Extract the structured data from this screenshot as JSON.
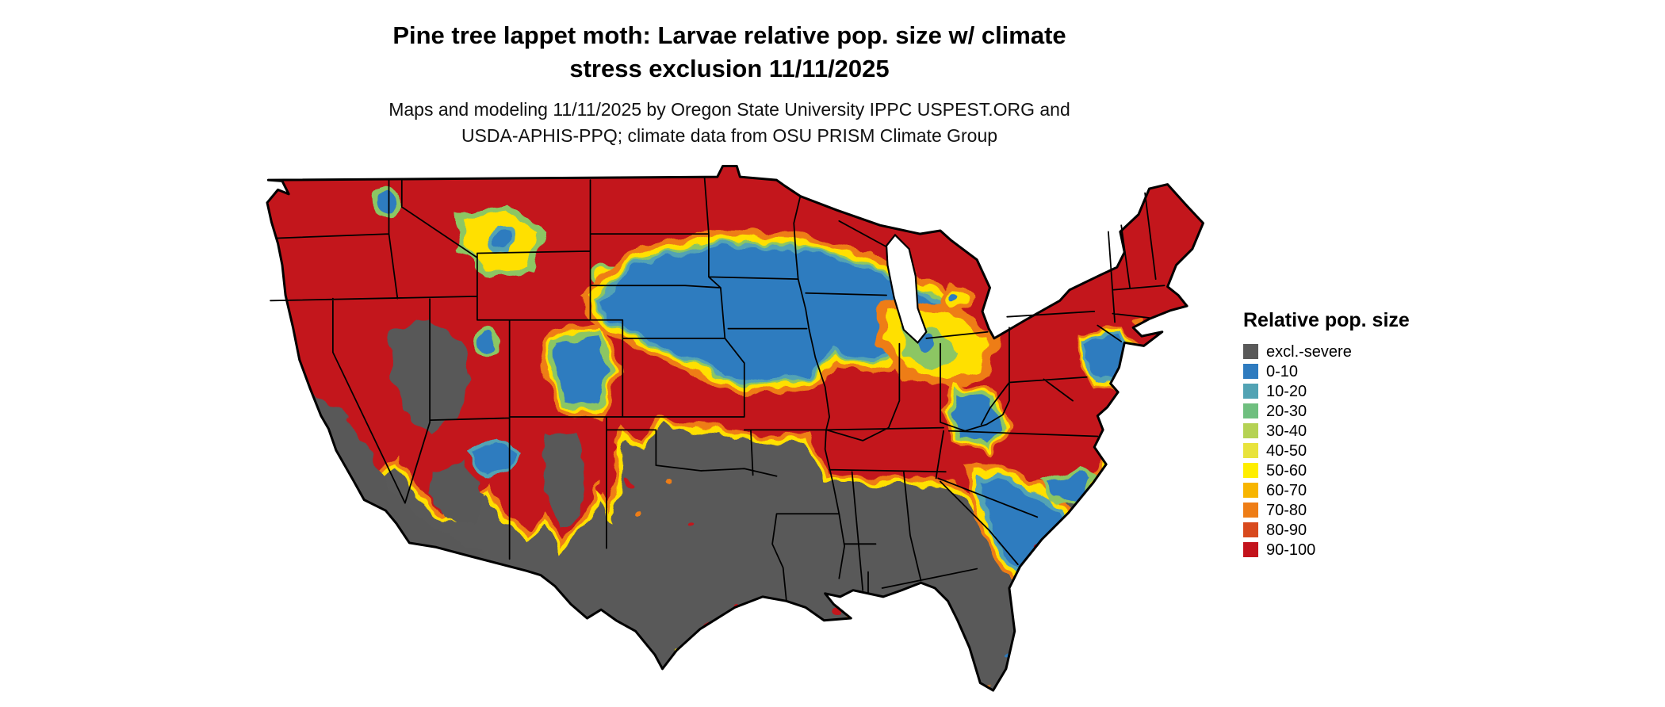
{
  "title": {
    "line1": "Pine tree lappet moth: Larvae relative pop. size w/ climate",
    "line2": "stress exclusion 11/11/2025"
  },
  "subtitle": {
    "line1": "Maps and modeling 11/11/2025 by Oregon State University IPPC USPEST.ORG and",
    "line2": "USDA-APHIS-PPQ; climate data from OSU PRISM Climate Group"
  },
  "map": {
    "name": "contiguous-us-larvae-relative-population-raster-map",
    "excluded_color": "#595959",
    "low_color": "#2e7bbf",
    "mid_color": "#ffe000",
    "high_color": "#c3131c",
    "boundary_color": "#000000"
  },
  "legend": {
    "title": "Relative pop. size",
    "items": [
      {
        "label": "excl.-severe",
        "color": "#595959"
      },
      {
        "label": "0-10",
        "color": "#2e7bbf"
      },
      {
        "label": "10-20",
        "color": "#52a3b4"
      },
      {
        "label": "20-30",
        "color": "#6fbf7f"
      },
      {
        "label": "30-40",
        "color": "#b5d254"
      },
      {
        "label": "40-50",
        "color": "#e8e33c"
      },
      {
        "label": "50-60",
        "color": "#ffee00"
      },
      {
        "label": "60-70",
        "color": "#f7b500"
      },
      {
        "label": "70-80",
        "color": "#ee7d16"
      },
      {
        "label": "80-90",
        "color": "#d8491d"
      },
      {
        "label": "90-100",
        "color": "#c3131c"
      }
    ]
  }
}
